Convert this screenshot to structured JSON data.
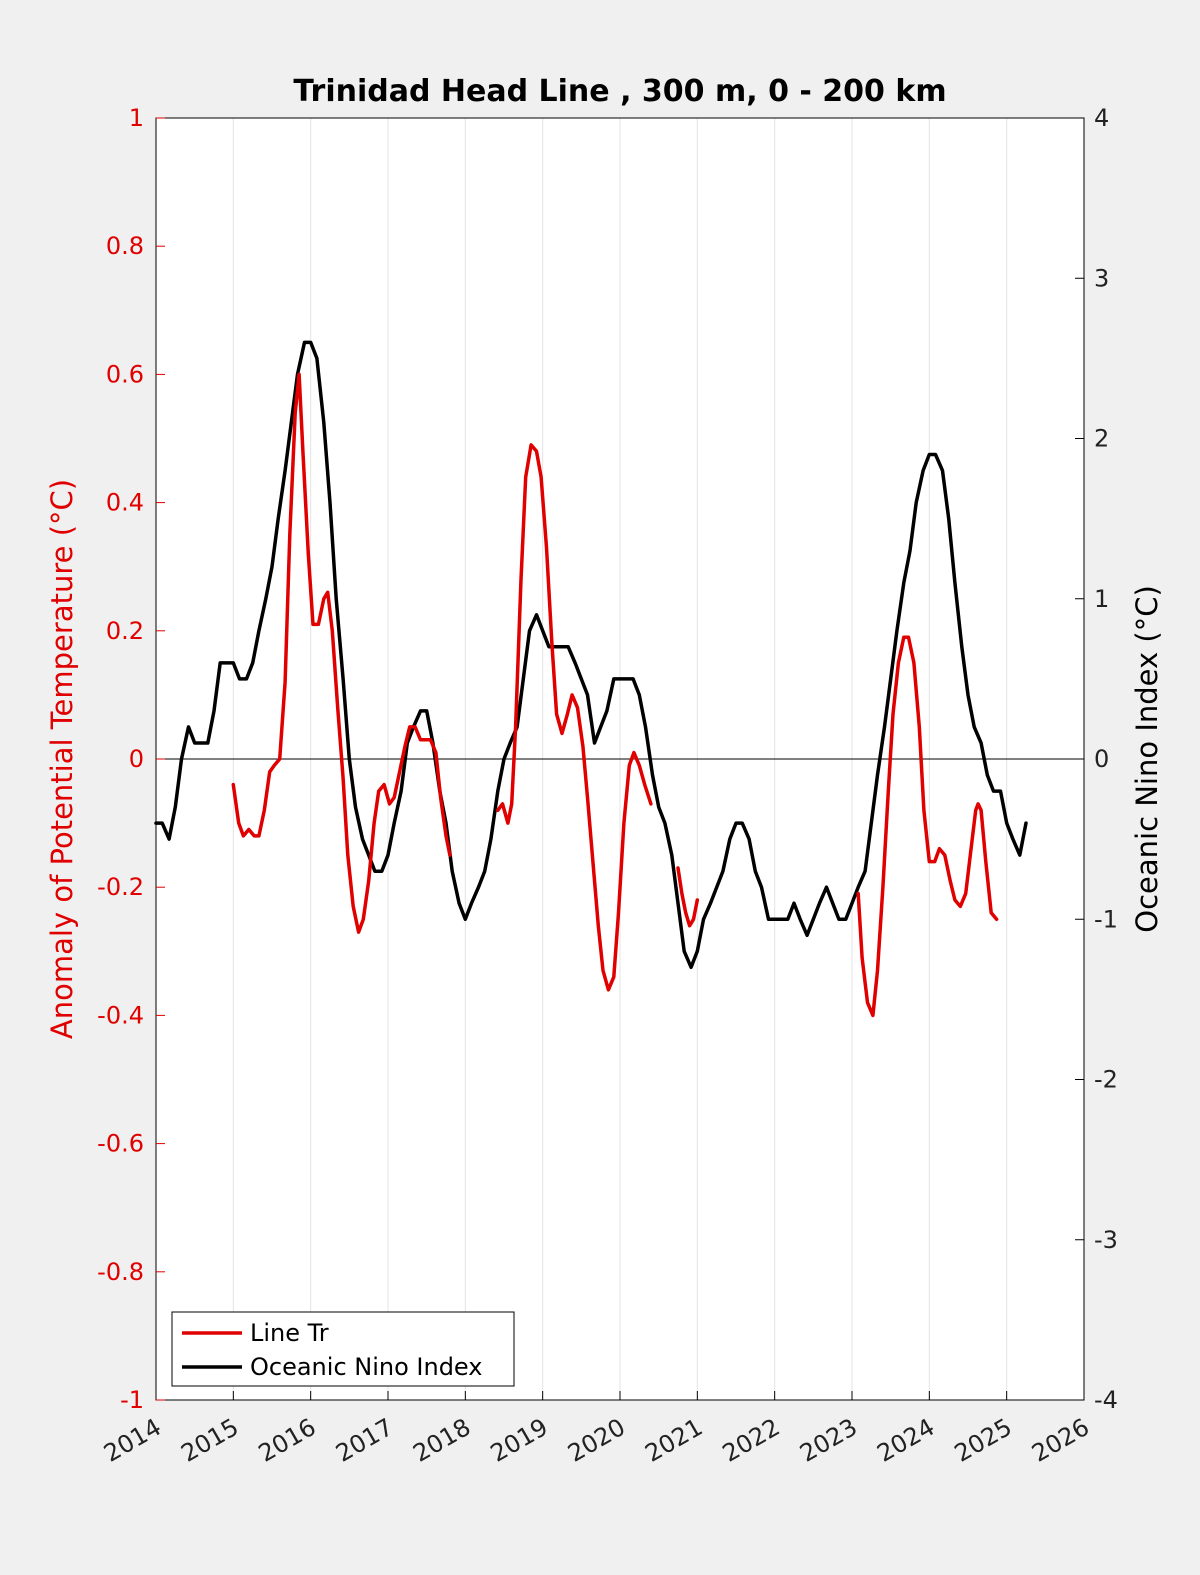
{
  "chart_data": {
    "type": "line",
    "title": "Trinidad Head Line , 300 m, 0 - 200 km",
    "xlabel": "",
    "ylabel_left": "Anomaly of Potential Temperature (°C)",
    "ylabel_right": "Oceanic Nino Index (°C)",
    "xlim": [
      2014,
      2026
    ],
    "ylim_left": [
      -1,
      1
    ],
    "ylim_right": [
      -4,
      4
    ],
    "x_ticks": [
      "2014",
      "2015",
      "2016",
      "2017",
      "2018",
      "2019",
      "2020",
      "2021",
      "2022",
      "2023",
      "2024",
      "2025",
      "2026"
    ],
    "y_ticks_left": [
      "1",
      "0.8",
      "0.6",
      "0.4",
      "0.2",
      "0",
      "-0.2",
      "-0.4",
      "-0.6",
      "-0.8",
      "-1"
    ],
    "y_ticks_right": [
      "4",
      "3",
      "2",
      "1",
      "0",
      "-1",
      "-2",
      "-3",
      "-4"
    ],
    "grid": "vertical",
    "zero_line": true,
    "legend_position": "bottom-left",
    "colors": {
      "left_axis": "#e00000",
      "line_tr": "#e00000",
      "oni": "#000000"
    },
    "series": [
      {
        "name": "Line Tr",
        "axis": "left",
        "segments": [
          [
            [
              2015.0,
              -0.04
            ],
            [
              2015.07,
              -0.1
            ],
            [
              2015.13,
              -0.12
            ],
            [
              2015.2,
              -0.11
            ],
            [
              2015.27,
              -0.12
            ],
            [
              2015.33,
              -0.12
            ],
            [
              2015.4,
              -0.08
            ],
            [
              2015.47,
              -0.02
            ],
            [
              2015.53,
              -0.01
            ],
            [
              2015.6,
              0.0
            ],
            [
              2015.67,
              0.12
            ],
            [
              2015.73,
              0.35
            ],
            [
              2015.8,
              0.54
            ],
            [
              2015.85,
              0.6
            ],
            [
              2015.9,
              0.48
            ],
            [
              2015.97,
              0.32
            ],
            [
              2016.03,
              0.21
            ],
            [
              2016.1,
              0.21
            ],
            [
              2016.17,
              0.25
            ],
            [
              2016.22,
              0.26
            ],
            [
              2016.28,
              0.2
            ],
            [
              2016.35,
              0.08
            ],
            [
              2016.42,
              -0.03
            ],
            [
              2016.48,
              -0.15
            ],
            [
              2016.55,
              -0.23
            ],
            [
              2016.62,
              -0.27
            ],
            [
              2016.68,
              -0.25
            ],
            [
              2016.75,
              -0.19
            ],
            [
              2016.82,
              -0.1
            ],
            [
              2016.88,
              -0.05
            ],
            [
              2016.95,
              -0.04
            ],
            [
              2017.02,
              -0.07
            ],
            [
              2017.08,
              -0.06
            ],
            [
              2017.15,
              -0.02
            ],
            [
              2017.22,
              0.02
            ],
            [
              2017.28,
              0.05
            ],
            [
              2017.35,
              0.05
            ],
            [
              2017.42,
              0.03
            ],
            [
              2017.48,
              0.03
            ],
            [
              2017.55,
              0.03
            ],
            [
              2017.62,
              0.01
            ],
            [
              2017.68,
              -0.06
            ],
            [
              2017.75,
              -0.12
            ],
            [
              2017.8,
              -0.15
            ]
          ],
          [
            [
              2018.42,
              -0.08
            ],
            [
              2018.48,
              -0.07
            ],
            [
              2018.55,
              -0.1
            ],
            [
              2018.6,
              -0.07
            ],
            [
              2018.65,
              0.05
            ],
            [
              2018.72,
              0.28
            ],
            [
              2018.78,
              0.44
            ],
            [
              2018.85,
              0.49
            ],
            [
              2018.92,
              0.48
            ],
            [
              2018.98,
              0.44
            ],
            [
              2019.05,
              0.33
            ],
            [
              2019.12,
              0.18
            ],
            [
              2019.18,
              0.07
            ],
            [
              2019.25,
              0.04
            ],
            [
              2019.32,
              0.07
            ],
            [
              2019.38,
              0.1
            ],
            [
              2019.45,
              0.08
            ],
            [
              2019.52,
              0.02
            ],
            [
              2019.58,
              -0.06
            ],
            [
              2019.65,
              -0.16
            ],
            [
              2019.72,
              -0.26
            ],
            [
              2019.78,
              -0.33
            ],
            [
              2019.85,
              -0.36
            ],
            [
              2019.92,
              -0.34
            ],
            [
              2019.98,
              -0.24
            ],
            [
              2020.05,
              -0.1
            ],
            [
              2020.12,
              -0.01
            ],
            [
              2020.18,
              0.01
            ],
            [
              2020.25,
              -0.01
            ],
            [
              2020.32,
              -0.04
            ],
            [
              2020.4,
              -0.07
            ]
          ],
          [
            [
              2020.75,
              -0.17
            ],
            [
              2020.8,
              -0.21
            ],
            [
              2020.85,
              -0.24
            ],
            [
              2020.9,
              -0.26
            ],
            [
              2020.95,
              -0.25
            ],
            [
              2021.0,
              -0.22
            ]
          ],
          [
            [
              2023.08,
              -0.21
            ],
            [
              2023.13,
              -0.31
            ],
            [
              2023.2,
              -0.38
            ],
            [
              2023.27,
              -0.4
            ],
            [
              2023.33,
              -0.33
            ],
            [
              2023.4,
              -0.2
            ],
            [
              2023.47,
              -0.05
            ],
            [
              2023.53,
              0.07
            ],
            [
              2023.6,
              0.15
            ],
            [
              2023.67,
              0.19
            ],
            [
              2023.73,
              0.19
            ],
            [
              2023.8,
              0.15
            ],
            [
              2023.87,
              0.05
            ],
            [
              2023.93,
              -0.08
            ],
            [
              2024.0,
              -0.16
            ],
            [
              2024.07,
              -0.16
            ],
            [
              2024.13,
              -0.14
            ],
            [
              2024.2,
              -0.15
            ],
            [
              2024.27,
              -0.19
            ],
            [
              2024.33,
              -0.22
            ],
            [
              2024.4,
              -0.23
            ],
            [
              2024.47,
              -0.21
            ],
            [
              2024.53,
              -0.15
            ],
            [
              2024.6,
              -0.08
            ],
            [
              2024.63,
              -0.07
            ],
            [
              2024.67,
              -0.08
            ],
            [
              2024.73,
              -0.16
            ],
            [
              2024.8,
              -0.24
            ],
            [
              2024.87,
              -0.25
            ]
          ]
        ]
      },
      {
        "name": "Oceanic Nino Index",
        "axis": "right",
        "segments": [
          [
            [
              2014.0,
              -0.4
            ],
            [
              2014.08,
              -0.4
            ],
            [
              2014.17,
              -0.5
            ],
            [
              2014.25,
              -0.3
            ],
            [
              2014.33,
              0.0
            ],
            [
              2014.42,
              0.2
            ],
            [
              2014.5,
              0.1
            ],
            [
              2014.58,
              0.1
            ],
            [
              2014.67,
              0.1
            ],
            [
              2014.75,
              0.3
            ],
            [
              2014.83,
              0.6
            ],
            [
              2014.92,
              0.6
            ],
            [
              2015.0,
              0.6
            ],
            [
              2015.08,
              0.5
            ],
            [
              2015.17,
              0.5
            ],
            [
              2015.25,
              0.6
            ],
            [
              2015.33,
              0.8
            ],
            [
              2015.42,
              1.0
            ],
            [
              2015.5,
              1.2
            ],
            [
              2015.58,
              1.5
            ],
            [
              2015.67,
              1.8
            ],
            [
              2015.75,
              2.1
            ],
            [
              2015.83,
              2.4
            ],
            [
              2015.92,
              2.6
            ],
            [
              2016.0,
              2.6
            ],
            [
              2016.08,
              2.5
            ],
            [
              2016.17,
              2.1
            ],
            [
              2016.25,
              1.6
            ],
            [
              2016.33,
              1.0
            ],
            [
              2016.42,
              0.5
            ],
            [
              2016.5,
              0.0
            ],
            [
              2016.58,
              -0.3
            ],
            [
              2016.67,
              -0.5
            ],
            [
              2016.75,
              -0.6
            ],
            [
              2016.83,
              -0.7
            ],
            [
              2016.92,
              -0.7
            ],
            [
              2017.0,
              -0.6
            ],
            [
              2017.08,
              -0.4
            ],
            [
              2017.17,
              -0.2
            ],
            [
              2017.25,
              0.1
            ],
            [
              2017.33,
              0.2
            ],
            [
              2017.42,
              0.3
            ],
            [
              2017.5,
              0.3
            ],
            [
              2017.58,
              0.1
            ],
            [
              2017.67,
              -0.2
            ],
            [
              2017.75,
              -0.4
            ],
            [
              2017.83,
              -0.7
            ],
            [
              2017.92,
              -0.9
            ],
            [
              2018.0,
              -1.0
            ],
            [
              2018.08,
              -0.9
            ],
            [
              2018.17,
              -0.8
            ],
            [
              2018.25,
              -0.7
            ],
            [
              2018.33,
              -0.5
            ],
            [
              2018.42,
              -0.2
            ],
            [
              2018.5,
              0.0
            ],
            [
              2018.58,
              0.1
            ],
            [
              2018.67,
              0.2
            ],
            [
              2018.75,
              0.5
            ],
            [
              2018.83,
              0.8
            ],
            [
              2018.92,
              0.9
            ],
            [
              2019.0,
              0.8
            ],
            [
              2019.08,
              0.7
            ],
            [
              2019.17,
              0.7
            ],
            [
              2019.25,
              0.7
            ],
            [
              2019.33,
              0.7
            ],
            [
              2019.42,
              0.6
            ],
            [
              2019.5,
              0.5
            ],
            [
              2019.58,
              0.4
            ],
            [
              2019.67,
              0.1
            ],
            [
              2019.75,
              0.2
            ],
            [
              2019.83,
              0.3
            ],
            [
              2019.92,
              0.5
            ],
            [
              2020.0,
              0.5
            ],
            [
              2020.08,
              0.5
            ],
            [
              2020.17,
              0.5
            ],
            [
              2020.25,
              0.4
            ],
            [
              2020.33,
              0.2
            ],
            [
              2020.42,
              -0.1
            ],
            [
              2020.5,
              -0.3
            ],
            [
              2020.58,
              -0.4
            ],
            [
              2020.67,
              -0.6
            ],
            [
              2020.75,
              -0.9
            ],
            [
              2020.83,
              -1.2
            ],
            [
              2020.92,
              -1.3
            ],
            [
              2021.0,
              -1.2
            ],
            [
              2021.08,
              -1.0
            ],
            [
              2021.17,
              -0.9
            ],
            [
              2021.25,
              -0.8
            ],
            [
              2021.33,
              -0.7
            ],
            [
              2021.42,
              -0.5
            ],
            [
              2021.5,
              -0.4
            ],
            [
              2021.58,
              -0.4
            ],
            [
              2021.67,
              -0.5
            ],
            [
              2021.75,
              -0.7
            ],
            [
              2021.83,
              -0.8
            ],
            [
              2021.92,
              -1.0
            ],
            [
              2022.0,
              -1.0
            ],
            [
              2022.08,
              -1.0
            ],
            [
              2022.17,
              -1.0
            ],
            [
              2022.25,
              -0.9
            ],
            [
              2022.33,
              -1.0
            ],
            [
              2022.42,
              -1.1
            ],
            [
              2022.5,
              -1.0
            ],
            [
              2022.58,
              -0.9
            ],
            [
              2022.67,
              -0.8
            ],
            [
              2022.75,
              -0.9
            ],
            [
              2022.83,
              -1.0
            ],
            [
              2022.92,
              -1.0
            ],
            [
              2023.0,
              -0.9
            ],
            [
              2023.08,
              -0.8
            ],
            [
              2023.17,
              -0.7
            ],
            [
              2023.25,
              -0.4
            ],
            [
              2023.33,
              -0.1
            ],
            [
              2023.42,
              0.2
            ],
            [
              2023.5,
              0.5
            ],
            [
              2023.58,
              0.8
            ],
            [
              2023.67,
              1.1
            ],
            [
              2023.75,
              1.3
            ],
            [
              2023.83,
              1.6
            ],
            [
              2023.92,
              1.8
            ],
            [
              2024.0,
              1.9
            ],
            [
              2024.08,
              1.9
            ],
            [
              2024.17,
              1.8
            ],
            [
              2024.25,
              1.5
            ],
            [
              2024.33,
              1.1
            ],
            [
              2024.42,
              0.7
            ],
            [
              2024.5,
              0.4
            ],
            [
              2024.58,
              0.2
            ],
            [
              2024.67,
              0.1
            ],
            [
              2024.75,
              -0.1
            ],
            [
              2024.83,
              -0.2
            ],
            [
              2024.92,
              -0.2
            ],
            [
              2025.0,
              -0.4
            ],
            [
              2025.08,
              -0.5
            ],
            [
              2025.17,
              -0.6
            ],
            [
              2025.25,
              -0.4
            ]
          ]
        ]
      }
    ]
  }
}
